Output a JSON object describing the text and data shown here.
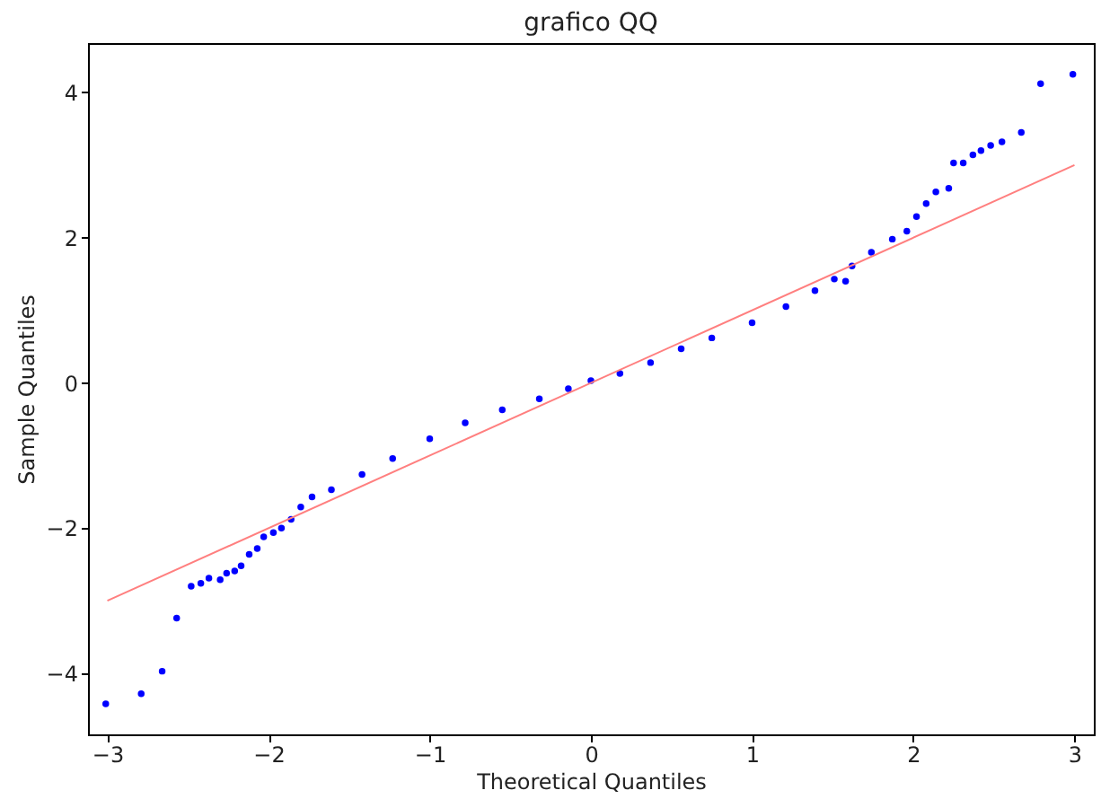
{
  "chart_data": {
    "type": "scatter",
    "title": "grafico QQ",
    "xlabel": "Theoretical Quantiles",
    "ylabel": "Sample Quantiles",
    "xlim": [
      -3.12,
      3.12
    ],
    "ylim": [
      -4.84,
      4.68
    ],
    "xticks": [
      -3,
      -2,
      -1,
      0,
      1,
      2,
      3
    ],
    "yticks": [
      -4,
      -2,
      0,
      2,
      4
    ],
    "grid": false,
    "series": [
      {
        "marker": "circle",
        "color": "#0000ff",
        "x": [
          -3.01,
          -2.79,
          -2.66,
          -2.57,
          -2.48,
          -2.42,
          -2.37,
          -2.3,
          -2.26,
          -2.21,
          -2.17,
          -2.12,
          -2.07,
          -2.03,
          -1.97,
          -1.92,
          -1.86,
          -1.8,
          -1.73,
          -1.61,
          -1.42,
          -1.23,
          -1.0,
          -0.78,
          -0.55,
          -0.32,
          -0.14,
          0,
          0.18,
          0.37,
          0.56,
          0.75,
          1.0,
          1.21,
          1.39,
          1.51,
          1.58,
          1.62,
          1.74,
          1.87,
          1.96,
          2.02,
          2.08,
          2.14,
          2.22,
          2.25,
          2.31,
          2.37,
          2.42,
          2.48,
          2.55,
          2.67,
          2.79,
          2.99
        ],
        "values": [
          -4.42,
          -4.28,
          -3.97,
          -3.24,
          -2.8,
          -2.76,
          -2.69,
          -2.71,
          -2.62,
          -2.59,
          -2.52,
          -2.36,
          -2.28,
          -2.12,
          -2.06,
          -2.0,
          -1.88,
          -1.71,
          -1.57,
          -1.47,
          -1.26,
          -1.04,
          -0.77,
          -0.55,
          -0.37,
          -0.22,
          -0.08,
          0.03,
          0.13,
          0.28,
          0.47,
          0.62,
          0.83,
          1.05,
          1.27,
          1.43,
          1.4,
          1.61,
          1.8,
          1.98,
          2.09,
          2.29,
          2.47,
          2.63,
          2.68,
          3.03,
          3.03,
          3.14,
          3.2,
          3.27,
          3.32,
          3.45,
          4.12,
          4.25
        ]
      },
      {
        "type": "line",
        "color": "#ff7f7f",
        "x": [
          -3,
          3
        ],
        "values": [
          -3,
          3
        ]
      }
    ]
  }
}
